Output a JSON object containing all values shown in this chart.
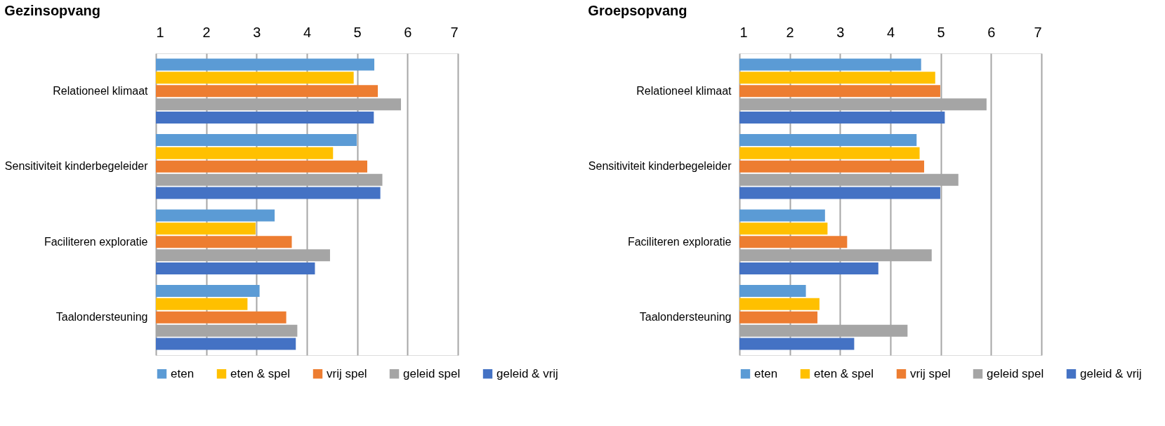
{
  "chart_data": [
    {
      "type": "bar",
      "orientation": "horizontal",
      "title": "Gezinsopvang",
      "categories": [
        "Relationeel klimaat",
        "Sensitiviteit kinderbegeleider",
        "Faciliteren exploratie",
        "Taalondersteuning"
      ],
      "series": [
        {
          "name": "eten",
          "color": "#5b9bd5",
          "values": [
            5.34,
            4.99,
            3.36,
            3.06
          ]
        },
        {
          "name": "eten & spel",
          "color": "#ffc000",
          "values": [
            4.93,
            4.52,
            2.98,
            2.82
          ]
        },
        {
          "name": "vrij spel",
          "color": "#ed7d31",
          "values": [
            5.41,
            5.2,
            3.7,
            3.59
          ]
        },
        {
          "name": "geleid spel",
          "color": "#a5a5a5",
          "values": [
            5.87,
            5.5,
            4.46,
            3.81
          ]
        },
        {
          "name": "geleid & vrij",
          "color": "#4472c4",
          "values": [
            5.33,
            5.46,
            4.16,
            3.78
          ]
        }
      ],
      "xlim": [
        1,
        7
      ],
      "xticks": [
        1,
        2,
        3,
        4,
        5,
        6,
        7
      ],
      "grid": "x",
      "legend": "bottom"
    },
    {
      "type": "bar",
      "orientation": "horizontal",
      "title": "Groepsopvang",
      "categories": [
        "Relationeel klimaat",
        "Sensitiviteit kinderbegeleider",
        "Faciliteren exploratie",
        "Taalondersteuning"
      ],
      "series": [
        {
          "name": "eten",
          "color": "#5b9bd5",
          "values": [
            4.61,
            4.52,
            2.7,
            2.32
          ]
        },
        {
          "name": "eten & spel",
          "color": "#ffc000",
          "values": [
            4.89,
            4.58,
            2.75,
            2.59
          ]
        },
        {
          "name": "vrij spel",
          "color": "#ed7d31",
          "values": [
            4.99,
            4.67,
            3.14,
            2.55
          ]
        },
        {
          "name": "geleid spel",
          "color": "#a5a5a5",
          "values": [
            5.91,
            5.35,
            4.82,
            4.34
          ]
        },
        {
          "name": "geleid & vrij",
          "color": "#4472c4",
          "values": [
            5.08,
            4.99,
            3.76,
            3.28
          ]
        }
      ],
      "xlim": [
        1,
        7
      ],
      "xticks": [
        1,
        2,
        3,
        4,
        5,
        6,
        7
      ],
      "grid": "x",
      "legend": "bottom"
    }
  ]
}
